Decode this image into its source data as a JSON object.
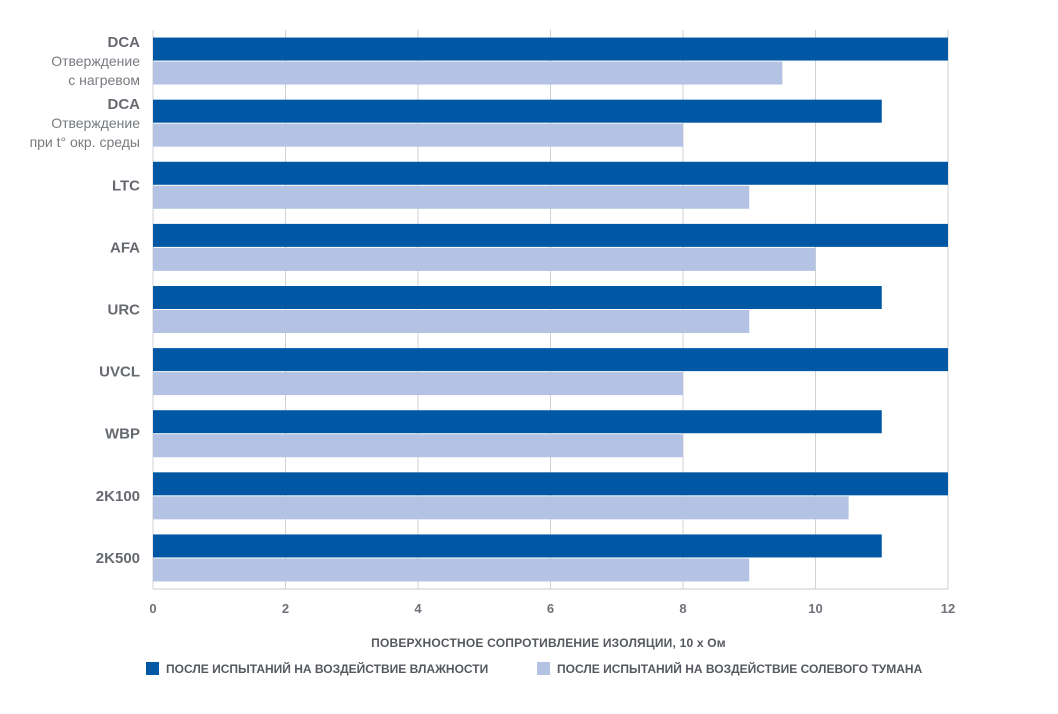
{
  "chart_data": {
    "type": "bar",
    "orientation": "horizontal",
    "categories": [
      {
        "name": "DCA",
        "sub": [
          "Отверждение",
          "с нагревом"
        ]
      },
      {
        "name": "DCA",
        "sub": [
          "Отверждение",
          "при t° окр. среды"
        ]
      },
      {
        "name": "LTC",
        "sub": []
      },
      {
        "name": "AFA",
        "sub": []
      },
      {
        "name": "URC",
        "sub": []
      },
      {
        "name": "UVCL",
        "sub": []
      },
      {
        "name": "WBP",
        "sub": []
      },
      {
        "name": "2K100",
        "sub": []
      },
      {
        "name": "2K500",
        "sub": []
      }
    ],
    "series": [
      {
        "name": "ПОСЛЕ ИСПЫТАНИЙ НА ВОЗДЕЙСТВИЕ ВЛАЖНОСТИ",
        "color": "#0057a3",
        "values": [
          12,
          11,
          12,
          12,
          11,
          12,
          11,
          12,
          11
        ]
      },
      {
        "name": "ПОСЛЕ ИСПЫТАНИЙ НА ВОЗДЕЙСТВИЕ СОЛЕВОГО ТУМАНА",
        "color": "#b4c3e3",
        "values": [
          9.5,
          8,
          9,
          10,
          9,
          8,
          8,
          10.5,
          9
        ]
      }
    ],
    "xlabel": "ПОВЕРХНОСТНОЕ СОПРОТИВЛЕНИЕ ИЗОЛЯЦИИ, 10 x Ом",
    "xlim": [
      0,
      12
    ],
    "xticks": [
      0,
      2,
      4,
      6,
      8,
      10,
      12
    ],
    "grid": true,
    "legend_position": "bottom"
  }
}
